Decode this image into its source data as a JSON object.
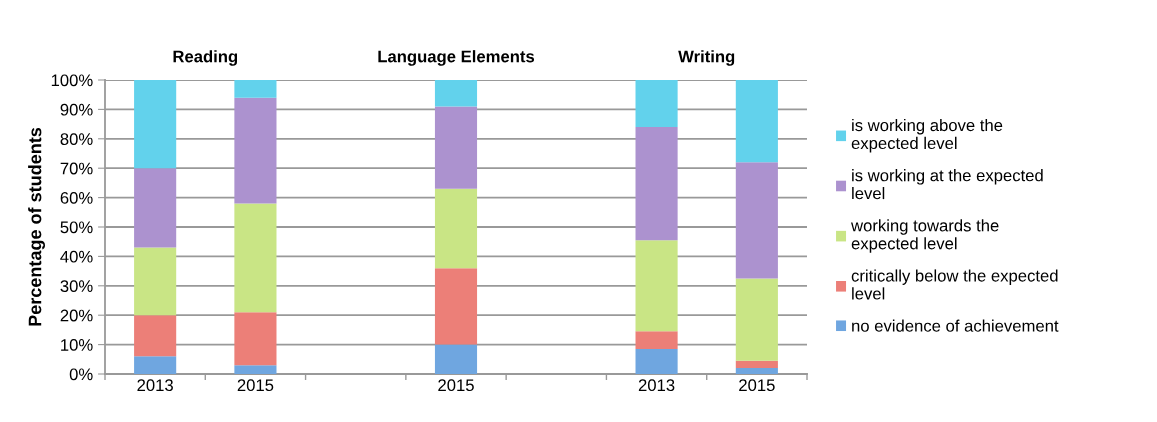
{
  "chart_data": {
    "type": "bar",
    "stacked": true,
    "categories": [
      "2013",
      "2015",
      null,
      "2015",
      null,
      "2013",
      "2015"
    ],
    "annotations": [
      "Reading",
      "Language Elements",
      "Writing"
    ],
    "ylabel": "Percentage of students",
    "series": [
      {
        "name": "no evidence of achievement",
        "color": "#6fa6e0",
        "values": [
          6,
          3,
          null,
          10,
          null,
          8.5,
          2
        ]
      },
      {
        "name": "critically below the expected\nlevel",
        "color": "#ec7f78",
        "values": [
          14,
          18,
          null,
          26,
          null,
          6,
          2.5
        ]
      },
      {
        "name": "working towards the\nexpected level",
        "color": "#c9e585",
        "values": [
          23,
          37,
          null,
          27,
          null,
          31,
          28
        ]
      },
      {
        "name": "is working at the expected\nlevel",
        "color": "#ac92cf",
        "values": [
          27,
          36,
          null,
          28,
          null,
          38.5,
          39.5
        ]
      },
      {
        "name": "is working above the\nexpected level",
        "color": "#62d2ec",
        "values": [
          30,
          6,
          null,
          9,
          null,
          16,
          28
        ]
      }
    ],
    "ylim": [
      0,
      100
    ],
    "yticks": [
      {
        "value": 0,
        "label": "0%"
      },
      {
        "value": 10,
        "label": "10%"
      },
      {
        "value": 20,
        "label": "20%"
      },
      {
        "value": 30,
        "label": "30%"
      },
      {
        "value": 40,
        "label": "40%"
      },
      {
        "value": 50,
        "label": "50%"
      },
      {
        "value": 60,
        "label": "60%"
      },
      {
        "value": 70,
        "label": "70%"
      },
      {
        "value": 80,
        "label": "80%"
      },
      {
        "value": 90,
        "label": "90%"
      },
      {
        "value": 100,
        "label": "100%"
      }
    ],
    "grid": "y",
    "legend": "right"
  }
}
